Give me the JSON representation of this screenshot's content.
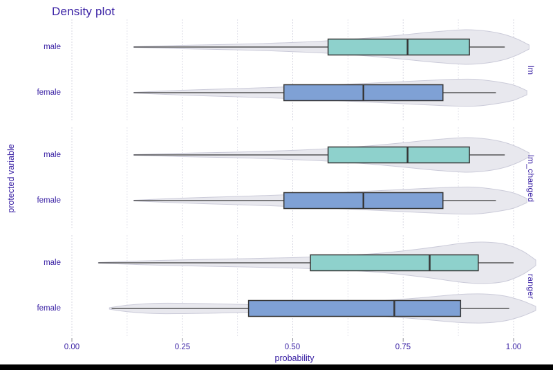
{
  "title": "Density plot",
  "axes": {
    "x_label": "probability",
    "y_label": "protected variable",
    "x_tick_labels": [
      "0.00",
      "0.25",
      "0.50",
      "0.75",
      "1.00"
    ]
  },
  "colors": {
    "text": "#371ea3",
    "grid_major": "#d7d7e2",
    "grid_minor": "#e3e3eb",
    "violin_fill": "#e8e8ee",
    "violin_stroke": "#cbcbd9",
    "box_stroke": "#373737",
    "tick": "#8a8a92",
    "male_fill": "#8ed1cc",
    "female_fill": "#7fa1d5",
    "bottom_bar": "#000000"
  },
  "chart_data": {
    "type": "violin+box",
    "title": "Density plot",
    "x_axis": {
      "label": "probability",
      "range": [
        0,
        1
      ],
      "ticks": [
        0,
        0.25,
        0.5,
        0.75,
        1.0
      ],
      "tick_labels": [
        "0.00",
        "0.25",
        "0.50",
        "0.75",
        "1.00"
      ],
      "minor_ticks": [
        0.125,
        0.375,
        0.625,
        0.875
      ],
      "grid": "dashed-vertical"
    },
    "y_axis": {
      "label": "protected variable",
      "categories": [
        "male",
        "female"
      ]
    },
    "facet_side": "right",
    "facets": [
      {
        "label": "lm",
        "rows": [
          {
            "category": "male",
            "fill": "#8ed1cc",
            "box": {
              "min": 0.14,
              "q1": 0.58,
              "median": 0.76,
              "q3": 0.9,
              "max": 0.98
            },
            "violin": [
              [
                0.14,
                0.5
              ],
              [
                0.25,
                2.5
              ],
              [
                0.4,
                4.5
              ],
              [
                0.55,
                8
              ],
              [
                0.65,
                12
              ],
              [
                0.74,
                17
              ],
              [
                0.82,
                22
              ],
              [
                0.89,
                25
              ],
              [
                0.94,
                23
              ],
              [
                0.98,
                18
              ],
              [
                1.01,
                11
              ],
              [
                1.035,
                3
              ]
            ]
          },
          {
            "category": "female",
            "fill": "#7fa1d5",
            "box": {
              "min": 0.14,
              "q1": 0.48,
              "median": 0.66,
              "q3": 0.84,
              "max": 0.96
            },
            "violin": [
              [
                0.14,
                0.5
              ],
              [
                0.25,
                3.5
              ],
              [
                0.35,
                5.5
              ],
              [
                0.45,
                7.5
              ],
              [
                0.55,
                10
              ],
              [
                0.65,
                13
              ],
              [
                0.75,
                16
              ],
              [
                0.85,
                19
              ],
              [
                0.91,
                19.5
              ],
              [
                0.96,
                16
              ],
              [
                1.0,
                11
              ],
              [
                1.03,
                3
              ]
            ]
          }
        ]
      },
      {
        "label": "lm_changed",
        "rows": [
          {
            "category": "male",
            "fill": "#8ed1cc",
            "box": {
              "min": 0.14,
              "q1": 0.58,
              "median": 0.76,
              "q3": 0.9,
              "max": 0.98
            },
            "violin": [
              [
                0.14,
                0.5
              ],
              [
                0.25,
                2.5
              ],
              [
                0.4,
                4.5
              ],
              [
                0.55,
                8
              ],
              [
                0.65,
                12
              ],
              [
                0.74,
                17
              ],
              [
                0.82,
                22
              ],
              [
                0.89,
                25
              ],
              [
                0.94,
                23
              ],
              [
                0.98,
                18
              ],
              [
                1.01,
                11
              ],
              [
                1.035,
                3
              ]
            ]
          },
          {
            "category": "female",
            "fill": "#7fa1d5",
            "box": {
              "min": 0.14,
              "q1": 0.48,
              "median": 0.66,
              "q3": 0.84,
              "max": 0.96
            },
            "violin": [
              [
                0.14,
                0.5
              ],
              [
                0.25,
                3.5
              ],
              [
                0.35,
                5.5
              ],
              [
                0.45,
                7.5
              ],
              [
                0.55,
                10
              ],
              [
                0.65,
                13
              ],
              [
                0.75,
                16
              ],
              [
                0.85,
                19
              ],
              [
                0.91,
                19.5
              ],
              [
                0.96,
                16
              ],
              [
                1.0,
                11
              ],
              [
                1.03,
                3
              ]
            ]
          }
        ]
      },
      {
        "label": "ranger",
        "rows": [
          {
            "category": "male",
            "fill": "#8ed1cc",
            "box": {
              "min": 0.06,
              "q1": 0.54,
              "median": 0.81,
              "q3": 0.92,
              "max": 1.0
            },
            "violin": [
              [
                0.06,
                0.5
              ],
              [
                0.2,
                3.5
              ],
              [
                0.35,
                5.5
              ],
              [
                0.5,
                7.5
              ],
              [
                0.6,
                10
              ],
              [
                0.7,
                14
              ],
              [
                0.8,
                21
              ],
              [
                0.88,
                28
              ],
              [
                0.93,
                30
              ],
              [
                0.98,
                27
              ],
              [
                1.02,
                17
              ],
              [
                1.05,
                4
              ]
            ]
          },
          {
            "category": "female",
            "fill": "#7fa1d5",
            "box": {
              "min": 0.09,
              "q1": 0.4,
              "median": 0.73,
              "q3": 0.88,
              "max": 0.99
            },
            "violin": [
              [
                0.085,
                1
              ],
              [
                0.13,
                5
              ],
              [
                0.2,
                7.5
              ],
              [
                0.3,
                7
              ],
              [
                0.42,
                5.5
              ],
              [
                0.55,
                6.5
              ],
              [
                0.67,
                10
              ],
              [
                0.78,
                15
              ],
              [
                0.87,
                20
              ],
              [
                0.93,
                21
              ],
              [
                0.98,
                18
              ],
              [
                1.02,
                11
              ],
              [
                1.05,
                3
              ]
            ]
          }
        ]
      }
    ]
  }
}
